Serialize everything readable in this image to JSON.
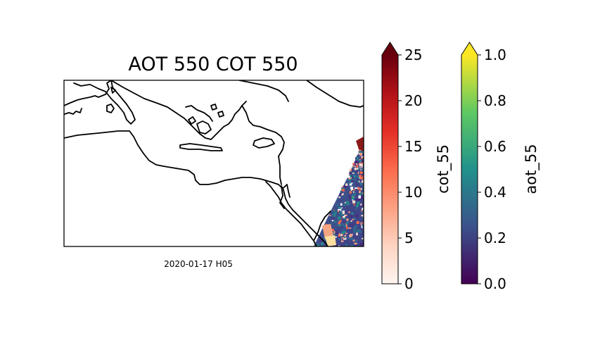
{
  "map": {
    "title": "AOT 550 COT 550",
    "timestamp": "2020-01-17 H05",
    "region": "Eastern Mediterranean / Red Sea"
  },
  "colorbars": [
    {
      "label": "cot_55",
      "colormap": "Reds",
      "min": 0,
      "max": 25,
      "extend": "max",
      "ticks": [
        "0",
        "5",
        "10",
        "15",
        "20",
        "25"
      ],
      "colors": [
        "#fff5f0",
        "#fdd4c2",
        "#fca082",
        "#fb6b4b",
        "#e32f27",
        "#b11218",
        "#67000d"
      ]
    },
    {
      "label": "aot_55",
      "colormap": "viridis",
      "min": 0.0,
      "max": 1.0,
      "extend": "max",
      "ticks": [
        "0.0",
        "0.2",
        "0.4",
        "0.6",
        "0.8",
        "1.0"
      ],
      "colors": [
        "#440154",
        "#3b528b",
        "#21918c",
        "#5ec962",
        "#fde725"
      ]
    }
  ]
}
